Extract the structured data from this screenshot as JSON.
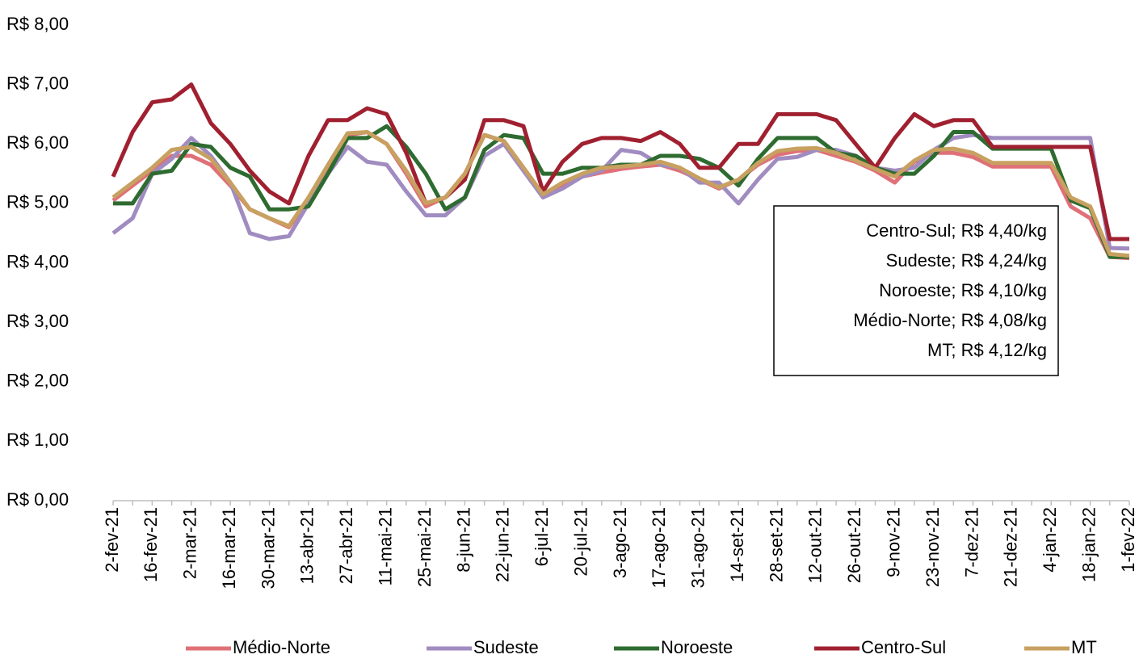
{
  "chart_data": {
    "type": "line",
    "categories": [
      "2-fev-21",
      null,
      "16-fev-21",
      null,
      "2-mar-21",
      null,
      "16-mar-21",
      null,
      "30-mar-21",
      null,
      "13-abr-21",
      null,
      "27-abr-21",
      null,
      "11-mai-21",
      null,
      "25-mai-21",
      null,
      "8-jun-21",
      null,
      "22-jun-21",
      null,
      "6-jul-21",
      null,
      "20-jul-21",
      null,
      "3-ago-21",
      null,
      "17-ago-21",
      null,
      "31-ago-21",
      null,
      "14-set-21",
      null,
      "28-set-21",
      null,
      "12-out-21",
      null,
      "26-out-21",
      null,
      "9-nov-21",
      null,
      "23-nov-21",
      null,
      "7-dez-21",
      null,
      "21-dez-21",
      null,
      "4-jan-22",
      null,
      "18-jan-22",
      null,
      "1-fev-22"
    ],
    "series": [
      {
        "name": "Médio-Norte",
        "color": "#e07078",
        "values": [
          5.05,
          5.3,
          5.55,
          5.8,
          5.8,
          5.65,
          5.3,
          4.9,
          4.75,
          4.6,
          5.05,
          5.6,
          6.15,
          6.2,
          6.0,
          5.5,
          4.95,
          5.1,
          5.5,
          6.15,
          6.05,
          5.6,
          5.15,
          5.3,
          5.45,
          5.52,
          5.58,
          5.62,
          5.65,
          5.55,
          5.4,
          5.25,
          5.4,
          5.65,
          5.82,
          5.88,
          5.9,
          5.8,
          5.7,
          5.55,
          5.35,
          5.7,
          5.85,
          5.85,
          5.78,
          5.62,
          5.62,
          5.62,
          5.62,
          4.95,
          4.75,
          4.1,
          4.08
        ]
      },
      {
        "name": "Sudeste",
        "color": "#a08cc0",
        "values": [
          4.5,
          4.75,
          5.5,
          5.75,
          6.1,
          5.8,
          5.35,
          4.5,
          4.4,
          4.45,
          5.0,
          5.5,
          5.95,
          5.7,
          5.65,
          5.2,
          4.8,
          4.8,
          5.1,
          5.8,
          6.0,
          5.55,
          5.1,
          5.25,
          5.45,
          5.55,
          5.9,
          5.85,
          5.65,
          5.6,
          5.35,
          5.35,
          5.0,
          5.4,
          5.75,
          5.78,
          5.9,
          5.9,
          5.8,
          5.6,
          5.55,
          5.6,
          5.9,
          6.1,
          6.15,
          6.1,
          6.1,
          6.1,
          6.1,
          6.1,
          6.1,
          4.25,
          4.24
        ]
      },
      {
        "name": "Noroeste",
        "color": "#2e6b30",
        "values": [
          5.0,
          5.0,
          5.5,
          5.55,
          6.0,
          5.95,
          5.6,
          5.45,
          4.9,
          4.9,
          4.95,
          5.5,
          6.1,
          6.1,
          6.3,
          5.95,
          5.5,
          4.9,
          5.1,
          5.9,
          6.15,
          6.1,
          5.5,
          5.5,
          5.6,
          5.6,
          5.65,
          5.65,
          5.8,
          5.8,
          5.75,
          5.6,
          5.3,
          5.75,
          6.1,
          6.1,
          6.1,
          5.85,
          5.8,
          5.6,
          5.5,
          5.5,
          5.8,
          6.2,
          6.2,
          5.92,
          5.92,
          5.92,
          5.92,
          5.05,
          4.92,
          4.1,
          4.1
        ]
      },
      {
        "name": "Centro-Sul",
        "color": "#a02030",
        "values": [
          5.45,
          6.2,
          6.7,
          6.75,
          7.0,
          6.35,
          6.0,
          5.55,
          5.2,
          5.0,
          5.8,
          6.4,
          6.4,
          6.6,
          6.5,
          5.85,
          5.0,
          5.1,
          5.4,
          6.4,
          6.4,
          6.3,
          5.2,
          5.7,
          6.0,
          6.1,
          6.1,
          6.05,
          6.2,
          6.0,
          5.6,
          5.6,
          6.0,
          6.0,
          6.5,
          6.5,
          6.5,
          6.4,
          6.0,
          5.6,
          6.1,
          6.5,
          6.3,
          6.4,
          6.4,
          5.95,
          5.95,
          5.95,
          5.95,
          5.95,
          5.95,
          4.4,
          4.4
        ]
      },
      {
        "name": "MT",
        "color": "#c8a060",
        "values": [
          5.1,
          5.35,
          5.6,
          5.9,
          5.95,
          5.75,
          5.35,
          4.9,
          4.75,
          4.62,
          5.1,
          5.65,
          6.18,
          6.2,
          6.0,
          5.55,
          5.0,
          5.1,
          5.5,
          6.15,
          6.05,
          5.6,
          5.15,
          5.35,
          5.5,
          5.6,
          5.62,
          5.65,
          5.7,
          5.6,
          5.42,
          5.27,
          5.4,
          5.68,
          5.88,
          5.92,
          5.93,
          5.85,
          5.72,
          5.58,
          5.45,
          5.72,
          5.9,
          5.92,
          5.85,
          5.68,
          5.68,
          5.68,
          5.68,
          5.1,
          4.95,
          4.15,
          4.12
        ]
      }
    ],
    "ylim": [
      0,
      8
    ],
    "yticks": [
      {
        "value": 0,
        "label": "R$ 0,00"
      },
      {
        "value": 1,
        "label": "R$ 1,00"
      },
      {
        "value": 2,
        "label": "R$ 2,00"
      },
      {
        "value": 3,
        "label": "R$ 3,00"
      },
      {
        "value": 4,
        "label": "R$ 4,00"
      },
      {
        "value": 5,
        "label": "R$ 5,00"
      },
      {
        "value": 6,
        "label": "R$ 6,00"
      },
      {
        "value": 7,
        "label": "R$ 7,00"
      },
      {
        "value": 8,
        "label": "R$ 8,00"
      }
    ],
    "annotations": [
      "Centro-Sul; R$ 4,40/kg",
      "Sudeste; R$ 4,24/kg",
      "Noroeste; R$ 4,10/kg",
      "Médio-Norte; R$ 4,08/kg",
      "MT; R$ 4,12/kg"
    ],
    "legend": "bottom"
  }
}
